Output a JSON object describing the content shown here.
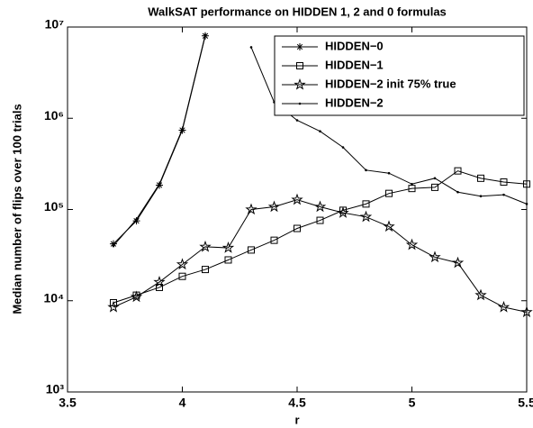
{
  "chart_data": {
    "type": "line",
    "title": "WalkSAT performance on HIDDEN 1, 2 and 0 formulas",
    "xlabel": "r",
    "ylabel": "Median number of flips over 100 trials",
    "x": [
      3.7,
      3.8,
      3.9,
      4.0,
      4.1,
      4.2,
      4.3,
      4.4,
      4.5,
      4.6,
      4.7,
      4.8,
      4.9,
      5.0,
      5.1,
      5.2,
      5.3,
      5.4,
      5.5
    ],
    "series": [
      {
        "name": "HIDDEN−0",
        "color": "#000000",
        "marker": "asterisk",
        "values": [
          42000,
          75000,
          185000,
          740000,
          8000000,
          null,
          null,
          null,
          null,
          null,
          null,
          null,
          null,
          null,
          null,
          null,
          null,
          null,
          null
        ]
      },
      {
        "name": "HIDDEN−1",
        "color": "#000000",
        "marker": "square",
        "values": [
          9500,
          11500,
          14000,
          18500,
          22000,
          28000,
          36000,
          46000,
          62000,
          76000,
          98000,
          115000,
          150000,
          170000,
          175000,
          265000,
          220000,
          200000,
          190000
        ]
      },
      {
        "name": "HIDDEN−2 init 75% true",
        "color": "#000000",
        "marker": "pentagram",
        "values": [
          8500,
          11000,
          16000,
          25000,
          39000,
          38000,
          100000,
          107000,
          128000,
          107000,
          92000,
          83000,
          65000,
          41000,
          30000,
          26000,
          11500,
          8500,
          7500
        ]
      },
      {
        "name": "HIDDEN−2",
        "color": "#000000",
        "marker": "dot",
        "values": [
          40000,
          78000,
          190000,
          760000,
          8200000,
          null,
          6000000,
          1500000,
          950000,
          720000,
          480000,
          270000,
          250000,
          190000,
          220000,
          155000,
          140000,
          145000,
          115000
        ]
      }
    ],
    "xlim": [
      3.5,
      5.5
    ],
    "xticks": [
      3.5,
      4,
      4.5,
      5,
      5.5
    ],
    "ylim": [
      1000,
      10000000
    ],
    "yticks": [
      {
        "value": 1000,
        "label": "10³"
      },
      {
        "value": 10000,
        "label": "10⁴"
      },
      {
        "value": 100000,
        "label": "10⁵"
      },
      {
        "value": 1000000,
        "label": "10⁶"
      },
      {
        "value": 10000000,
        "label": "10⁷"
      }
    ],
    "ylog": true,
    "grid": false,
    "legend": "upper right"
  }
}
